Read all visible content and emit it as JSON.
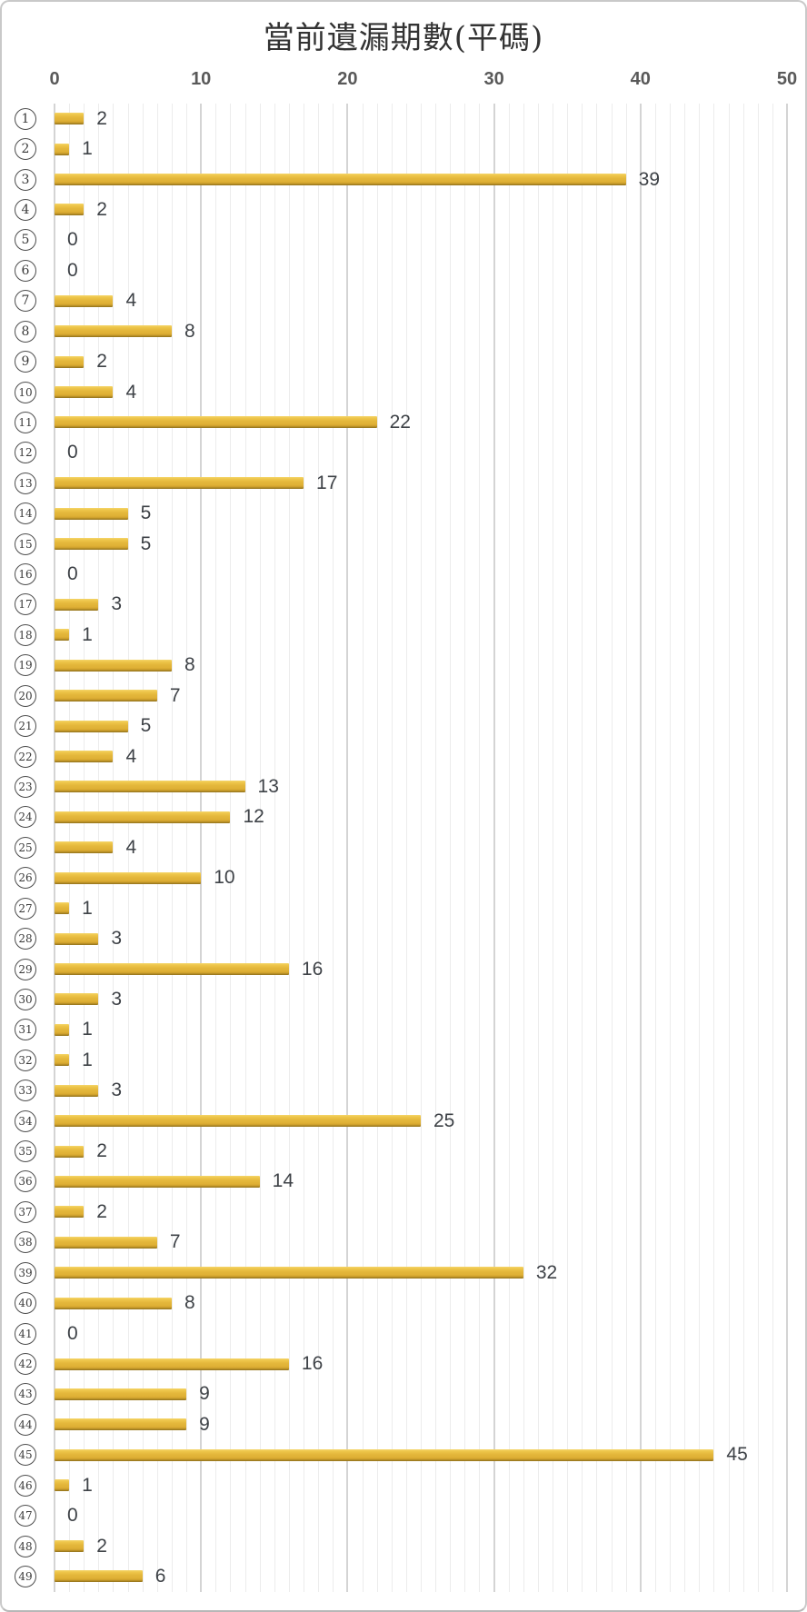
{
  "chart_data": {
    "type": "bar",
    "orientation": "horizontal",
    "title": "當前遺漏期數(平碼)",
    "categories": [
      1,
      2,
      3,
      4,
      5,
      6,
      7,
      8,
      9,
      10,
      11,
      12,
      13,
      14,
      15,
      16,
      17,
      18,
      19,
      20,
      21,
      22,
      23,
      24,
      25,
      26,
      27,
      28,
      29,
      30,
      31,
      32,
      33,
      34,
      35,
      36,
      37,
      38,
      39,
      40,
      41,
      42,
      43,
      44,
      45,
      46,
      47,
      48,
      49
    ],
    "category_display": "number-in-circle",
    "values": [
      2,
      1,
      39,
      2,
      0,
      0,
      4,
      8,
      2,
      4,
      22,
      0,
      17,
      5,
      5,
      0,
      3,
      1,
      8,
      7,
      5,
      4,
      13,
      12,
      4,
      10,
      1,
      3,
      16,
      3,
      1,
      1,
      3,
      25,
      2,
      14,
      2,
      7,
      32,
      8,
      0,
      16,
      9,
      9,
      45,
      1,
      0,
      2,
      6
    ],
    "data_labels_shown": true,
    "x_ticks": [
      0,
      10,
      20,
      30,
      40,
      50
    ],
    "xlim": [
      0,
      50
    ],
    "grid": {
      "minor_every": 1,
      "major_every": 10,
      "minor_color": "#ececec",
      "major_color": "#d4d4d4"
    },
    "legend": "none",
    "bar_color": "#e4b73b",
    "bar_shadow_color": "#8f701b",
    "tick_label_color": "#595959",
    "value_label_color": "#3e4247",
    "title_color": "#333333",
    "panel_border_color": "#c9c9c9"
  }
}
